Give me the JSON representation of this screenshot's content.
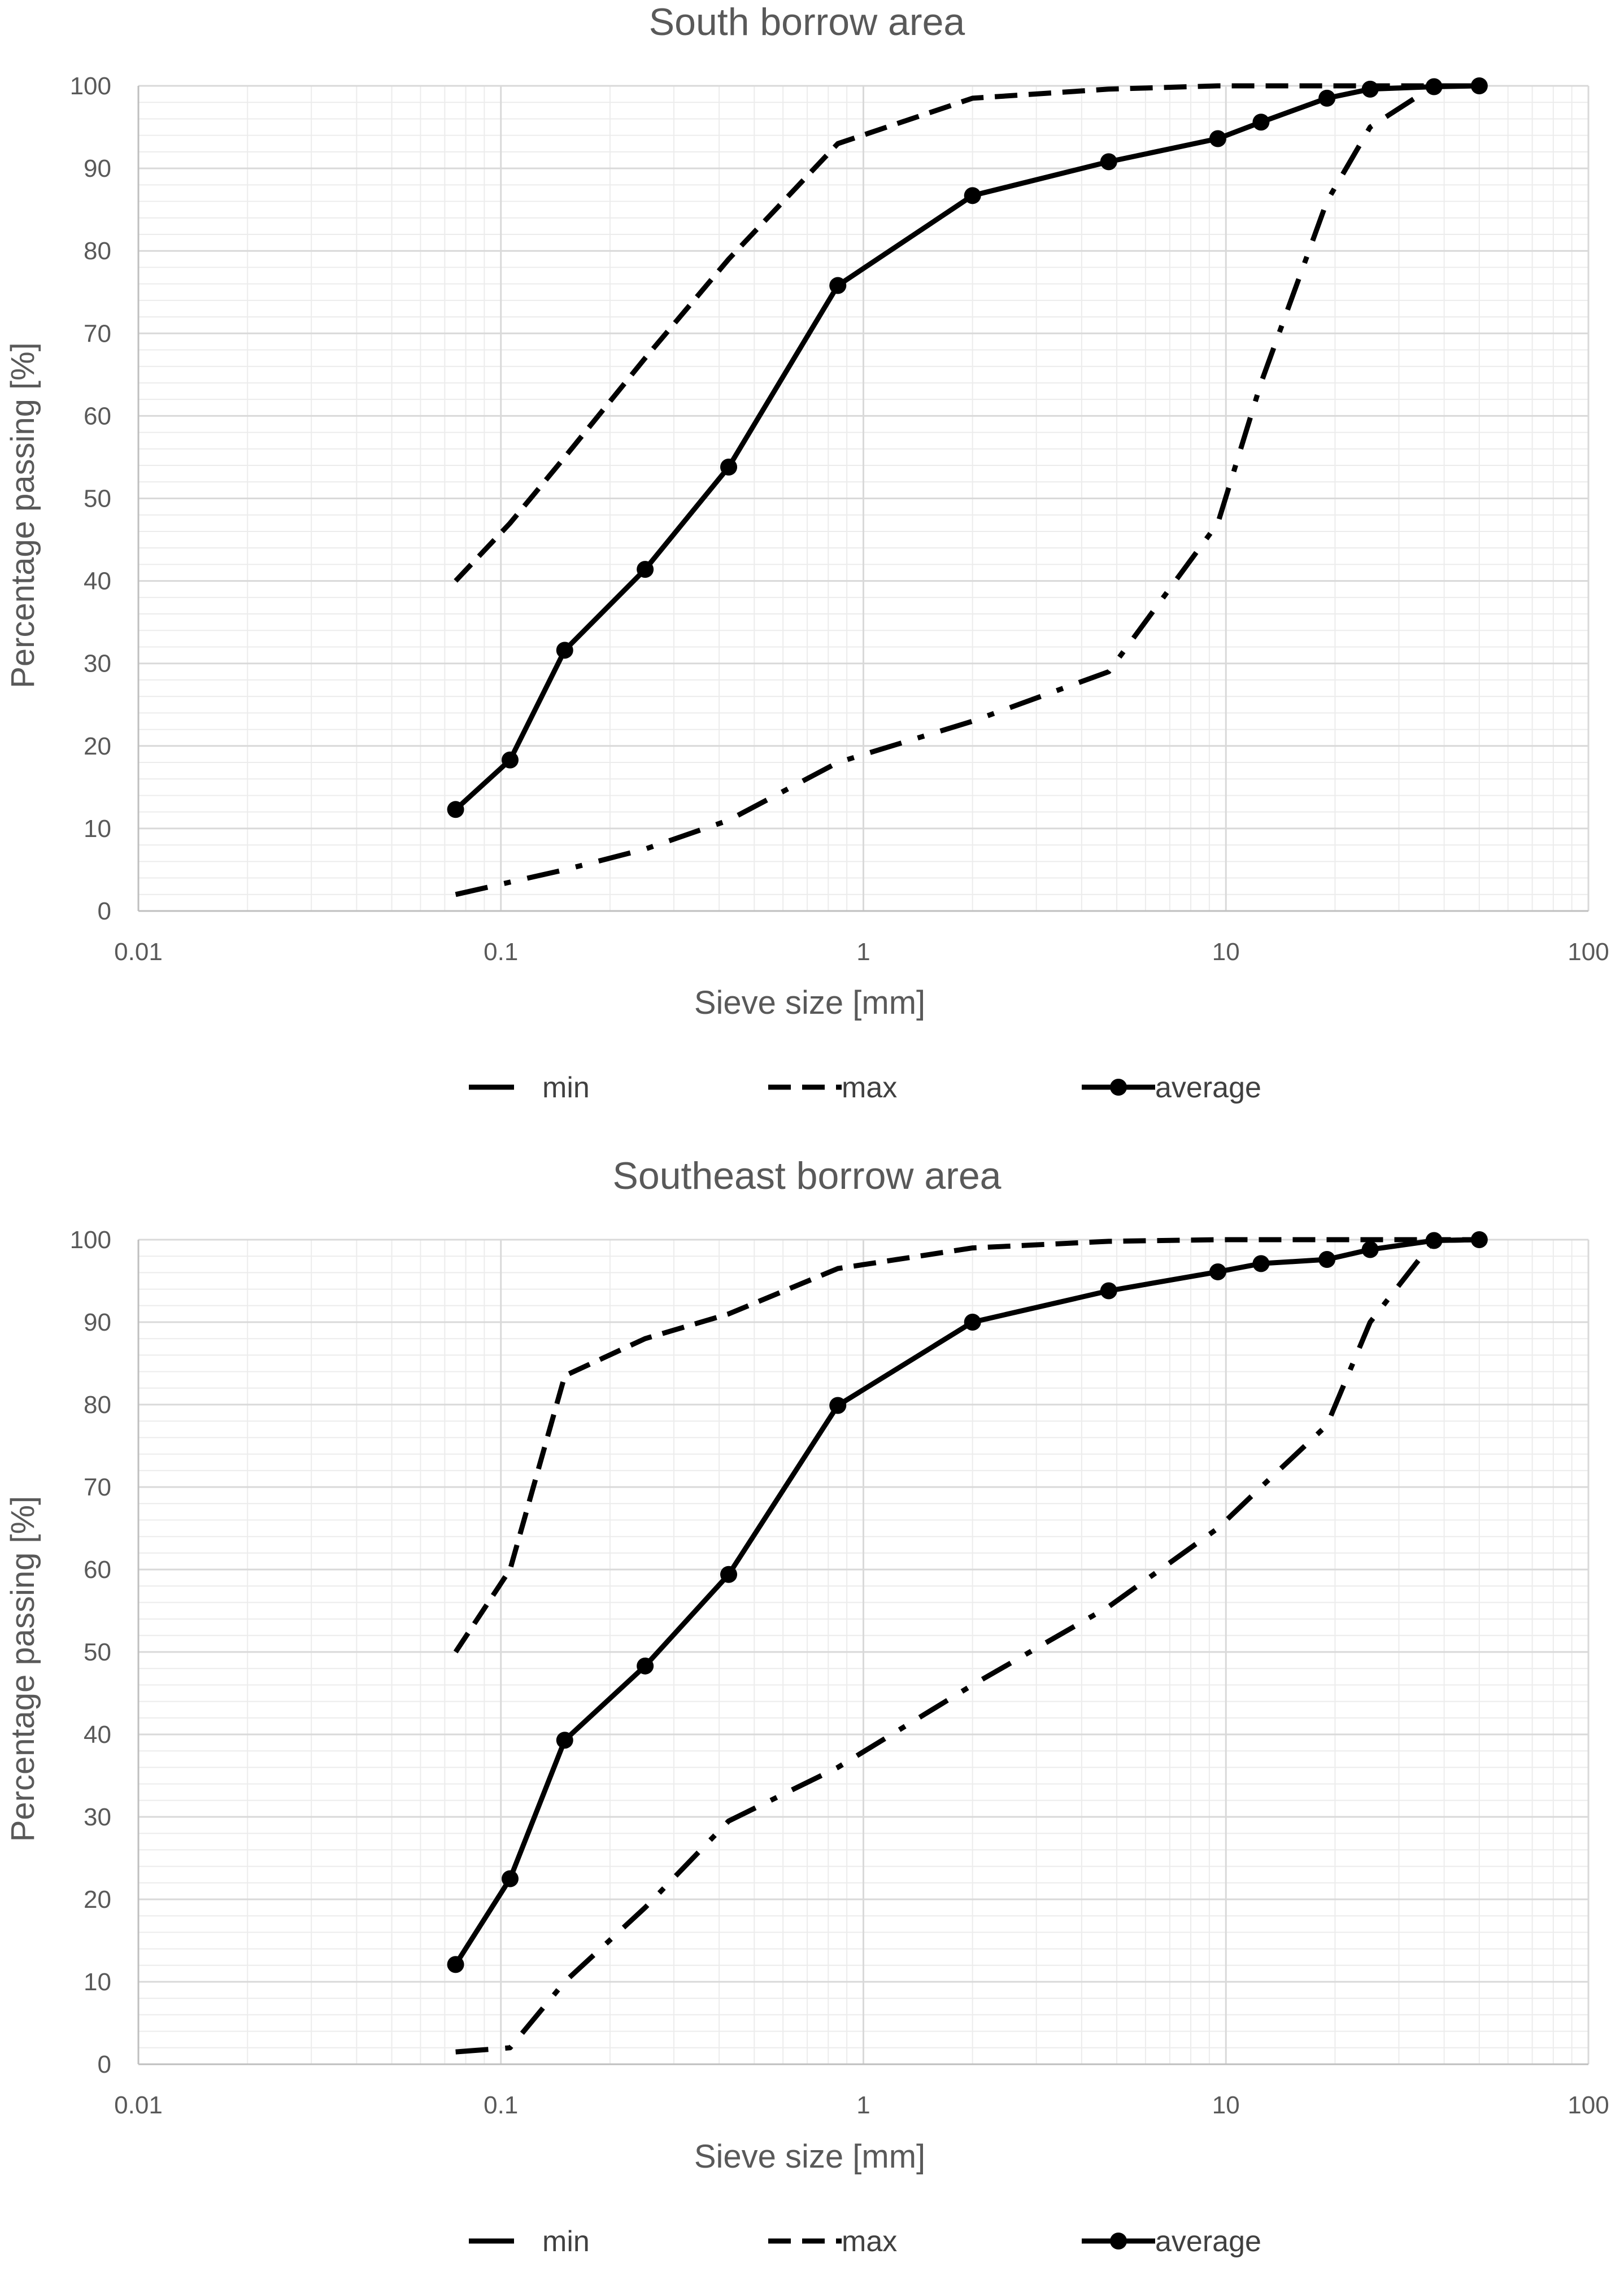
{
  "chart_data": [
    {
      "type": "line",
      "title": "South borrow area",
      "xlabel": "Sieve size [mm]",
      "ylabel": "Percentage passing [%]",
      "xscale": "log",
      "xlim": [
        0.01,
        100
      ],
      "ylim": [
        0,
        100
      ],
      "x_ticks": [
        "0.01",
        "0.1",
        "1",
        "10",
        "100"
      ],
      "y_ticks": [
        "0",
        "10",
        "20",
        "30",
        "40",
        "50",
        "60",
        "70",
        "80",
        "90",
        "100"
      ],
      "grid": true,
      "legend_position": "bottom",
      "series": [
        {
          "name": "min",
          "style": "dash-dot",
          "x": [
            0.075,
            0.106,
            0.15,
            0.25,
            0.425,
            0.85,
            2,
            4.75,
            9.5,
            12.5,
            19,
            25,
            37.5,
            50
          ],
          "y": [
            2,
            3.5,
            5,
            7.5,
            11,
            18,
            23,
            29,
            47,
            64,
            86,
            95,
            100,
            100
          ]
        },
        {
          "name": "max",
          "style": "dash",
          "x": [
            0.075,
            0.106,
            0.15,
            0.25,
            0.425,
            0.85,
            2,
            4.75,
            9.5,
            12.5,
            19,
            25,
            37.5,
            50
          ],
          "y": [
            40,
            47,
            55,
            67,
            79,
            93,
            98.5,
            99.6,
            100,
            100,
            100,
            100,
            100,
            100
          ]
        },
        {
          "name": "average",
          "style": "solid-marker",
          "x": [
            0.075,
            0.106,
            0.15,
            0.25,
            0.425,
            0.85,
            2,
            4.75,
            9.5,
            12.5,
            19,
            25,
            37.5,
            50
          ],
          "y": [
            12.3,
            18.3,
            31.6,
            41.4,
            53.8,
            75.8,
            86.7,
            90.8,
            93.6,
            95.6,
            98.5,
            99.6,
            99.9,
            100
          ]
        }
      ]
    },
    {
      "type": "line",
      "title": "Southeast borrow area",
      "xlabel": "Sieve size [mm]",
      "ylabel": "Percentage passing [%]",
      "xscale": "log",
      "xlim": [
        0.01,
        100
      ],
      "ylim": [
        0,
        100
      ],
      "x_ticks": [
        "0.01",
        "0.1",
        "1",
        "10",
        "100"
      ],
      "y_ticks": [
        "0",
        "10",
        "20",
        "30",
        "40",
        "50",
        "60",
        "70",
        "80",
        "90",
        "100"
      ],
      "grid": true,
      "legend_position": "bottom",
      "series": [
        {
          "name": "min",
          "style": "dash-dot",
          "x": [
            0.075,
            0.106,
            0.15,
            0.25,
            0.425,
            0.85,
            2,
            4.75,
            9.5,
            12.5,
            19,
            25,
            37.5,
            50
          ],
          "y": [
            1.5,
            2,
            10,
            19,
            29.5,
            36,
            46,
            55.5,
            65,
            70,
            77.5,
            90,
            99.9,
            100
          ]
        },
        {
          "name": "max",
          "style": "dash",
          "x": [
            0.075,
            0.106,
            0.15,
            0.25,
            0.425,
            0.85,
            2,
            4.75,
            9.5,
            12.5,
            19,
            25,
            37.5,
            50
          ],
          "y": [
            50,
            60,
            83.5,
            88,
            91,
            96.5,
            99,
            99.8,
            100,
            100,
            100,
            100,
            100,
            100
          ]
        },
        {
          "name": "average",
          "style": "solid-marker",
          "x": [
            0.075,
            0.106,
            0.15,
            0.25,
            0.425,
            0.85,
            2,
            4.75,
            9.5,
            12.5,
            19,
            25,
            37.5,
            50
          ],
          "y": [
            12.1,
            22.5,
            39.3,
            48.3,
            59.4,
            79.9,
            90,
            93.8,
            96.1,
            97.1,
            97.6,
            98.8,
            99.9,
            100
          ]
        }
      ]
    }
  ]
}
